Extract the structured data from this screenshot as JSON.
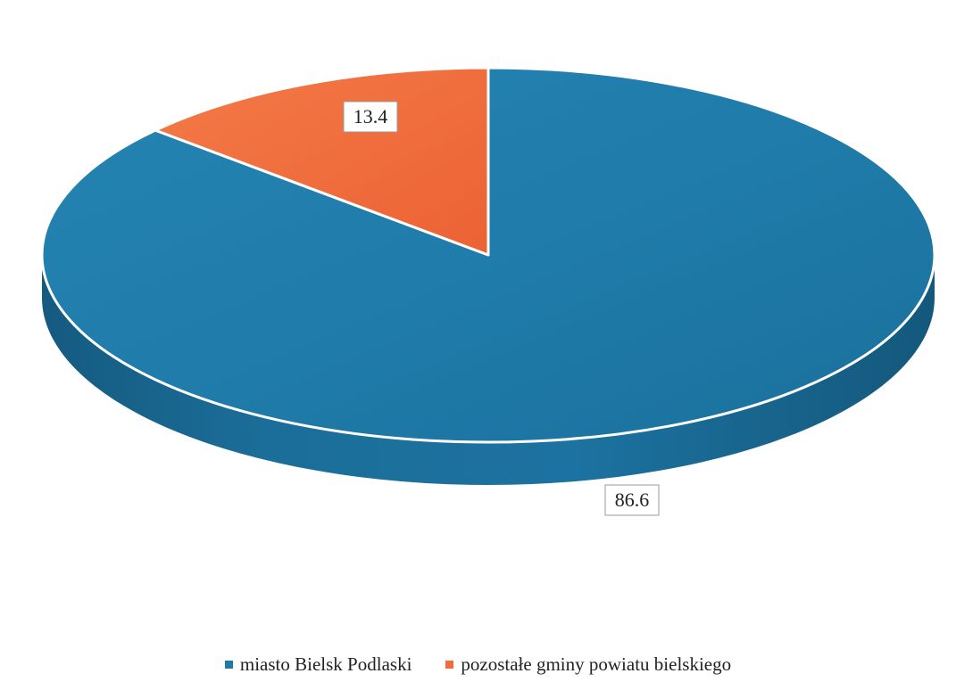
{
  "chart_data": {
    "type": "pie",
    "title": "",
    "categories": [
      "miasto Bielsk Podlaski",
      "pozostałe gminy powiatu bielskiego"
    ],
    "values": [
      86.6,
      13.4
    ],
    "data_labels": [
      "86.6",
      "13.4"
    ],
    "colors": [
      "#1f7aa8",
      "#f26d3d"
    ],
    "style": "3d-pie",
    "legend": {
      "position": "bottom",
      "entries": [
        {
          "label": "miasto Bielsk Podlaski",
          "color": "#1f7aa8"
        },
        {
          "label": "pozostałe gminy powiatu bielskiego",
          "color": "#f26d3d"
        }
      ]
    }
  }
}
